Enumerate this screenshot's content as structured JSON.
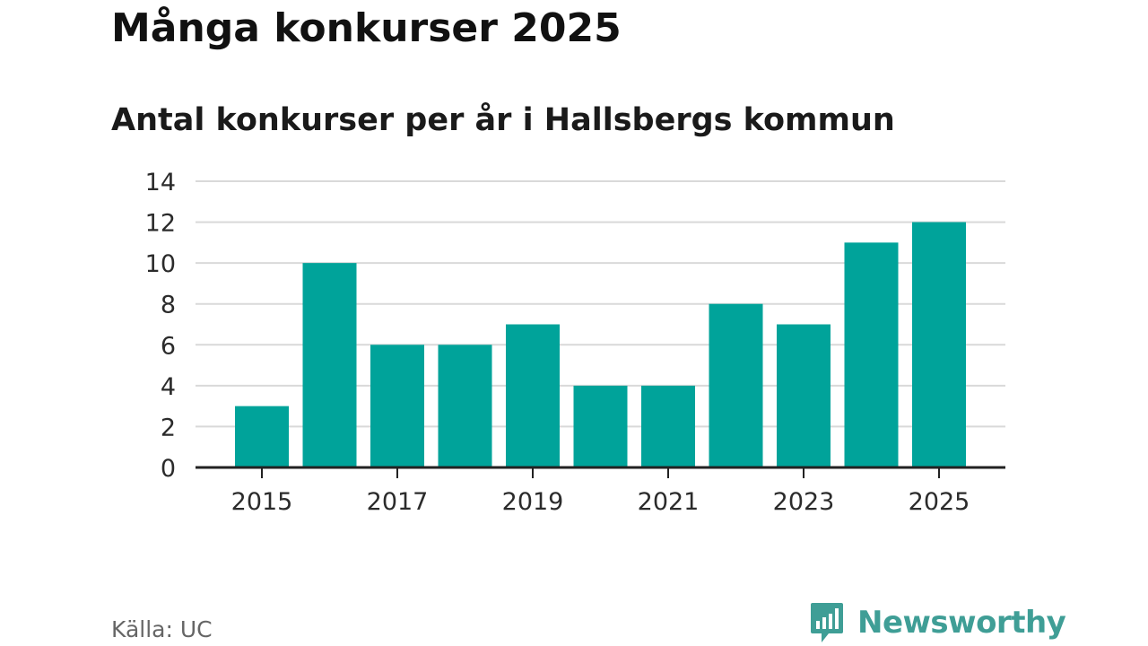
{
  "header": {
    "title": "Många konkurser 2025",
    "subtitle": "Antal konkurser per år i Hallsbergs kommun"
  },
  "footer": {
    "source": "Källa: UC",
    "brand": "Newsworthy"
  },
  "colors": {
    "bar": "#00a39a",
    "brand": "#3f9e96",
    "grid": "#d9d9d9",
    "axis": "#222222"
  },
  "chart_data": {
    "type": "bar",
    "title": "Antal konkurser per år i Hallsbergs kommun",
    "xlabel": "",
    "ylabel": "",
    "categories": [
      "2015",
      "2016",
      "2017",
      "2018",
      "2019",
      "2020",
      "2021",
      "2022",
      "2023",
      "2024",
      "2025"
    ],
    "values": [
      3,
      10,
      6,
      6,
      7,
      4,
      4,
      8,
      7,
      11,
      12
    ],
    "x_tick_labels": [
      "2015",
      "2017",
      "2019",
      "2021",
      "2023",
      "2025"
    ],
    "y_ticks": [
      0,
      2,
      4,
      6,
      8,
      10,
      12,
      14
    ],
    "ylim": [
      0,
      14
    ],
    "grid": true,
    "legend": "none"
  }
}
